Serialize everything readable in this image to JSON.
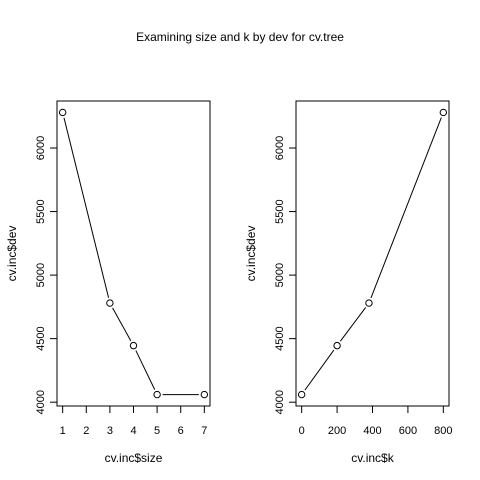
{
  "figure": {
    "title": "Examining size and k by dev for cv.tree"
  },
  "chart_data": [
    {
      "type": "line",
      "markers": "open-circle",
      "xlabel": "cv.inc$size",
      "ylabel": "cv.inc$dev",
      "x": [
        1,
        3,
        4,
        5,
        7
      ],
      "y": [
        6280,
        4780,
        4445,
        4060,
        4060
      ],
      "xticks": [
        1,
        2,
        3,
        4,
        5,
        6,
        7
      ],
      "yticks": [
        4000,
        4500,
        5000,
        5500,
        6000
      ],
      "xlim": [
        0.76,
        7.24
      ],
      "ylim": [
        3970,
        6370
      ],
      "grid": false
    },
    {
      "type": "line",
      "markers": "open-circle",
      "xlabel": "cv.inc$k",
      "ylabel": "cv.inc$dev",
      "x": [
        0,
        200,
        380,
        800
      ],
      "y": [
        4060,
        4445,
        4780,
        6280
      ],
      "xticks": [
        0,
        200,
        400,
        600,
        800
      ],
      "yticks": [
        4000,
        4500,
        5000,
        5500,
        6000
      ],
      "xlim": [
        -32,
        832
      ],
      "ylim": [
        3970,
        6370
      ],
      "grid": false
    }
  ]
}
